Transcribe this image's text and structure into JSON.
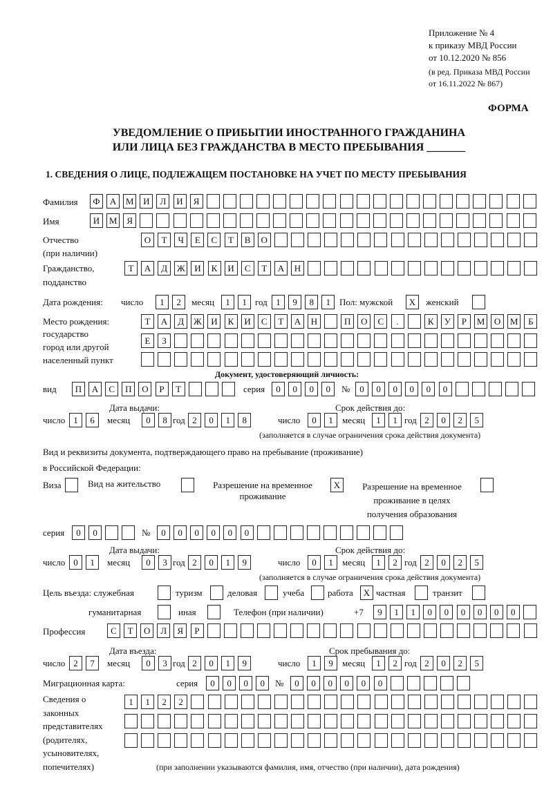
{
  "header": {
    "appendix": "Приложение № 4",
    "order_ref": "к приказу МВД России",
    "order_date": "от 10.12.2020 № 856",
    "amend_1": "(в ред. Приказа МВД России",
    "amend_2": "от 16.11.2022 № 867)",
    "form_label": "ФОРМА",
    "title_1": "УВЕДОМЛЕНИЕ О ПРИБЫТИИ ИНОСТРАННОГО ГРАЖДАНИНА",
    "title_2": "ИЛИ ЛИЦА БЕЗ ГРАЖДАНСТВА В МЕСТО ПРЕБЫВАНИЯ _______",
    "section_1": "1. СВЕДЕНИЯ О ЛИЦЕ, ПОДЛЕЖАЩЕМ ПОСТАНОВКЕ НА УЧЕТ ПО МЕСТУ ПРЕБЫВАНИЯ"
  },
  "labels": {
    "surname": "Фамилия",
    "name": "Имя",
    "patronymic_1": "Отчество",
    "patronymic_2": "(при наличии)",
    "citizenship_1": "Гражданство,",
    "citizenship_2": "подданство",
    "birth_date": "Дата рождения:",
    "day": "число",
    "month": "месяц",
    "year": "год",
    "sex": "Пол: мужской",
    "female": "женский",
    "birthplace_1": "Место рождения:",
    "birthplace_2": "государство",
    "birthplace_3": "город или другой",
    "birthplace_4": "населенный пункт",
    "id_doc": "Документ, удостоверяющий личность:",
    "kind": "вид",
    "series": "серия",
    "number": "№",
    "issue_date": "Дата выдачи:",
    "valid_until": "Срок действия до:",
    "valid_note": "(заполняется в случае ограничения срока действия документа)",
    "stay_doc_1": "Вид и реквизиты документа, подтверждающего право на пребывание (проживание)",
    "stay_doc_2": "в Российской Федерации:",
    "visa": "Виза",
    "residence": "Вид на жительство",
    "trp_1": "Разрешение на временное",
    "trp_2": "проживание",
    "trp_edu_1": "Разрешение на временное",
    "trp_edu_2": "проживание в целях",
    "trp_edu_3": "получения образования",
    "purpose": "Цель въезда: служебная",
    "tourism": "туризм",
    "business": "деловая",
    "study": "учеба",
    "work": "работа",
    "private": "частная",
    "transit": "транзит",
    "humanitarian": "гуманитарная",
    "other": "иная",
    "phone": "Телефон (при наличии)",
    "phone_prefix": "+7",
    "profession": "Профессия",
    "entry_date": "Дата въезда:",
    "stay_until": "Срок пребывания до:",
    "migration_card": "Миграционная карта:",
    "reps_1": "Сведения о",
    "reps_2": "законных",
    "reps_3": "представителях",
    "reps_4": "(родителях,",
    "reps_5": "усыновителях,",
    "reps_6": "попечителях)",
    "reps_note": "(при заполнении указываются фамилия, имя, отчество (при наличии), дата рождения)"
  },
  "values": {
    "surname": "ФАМИЛИЯ",
    "name": "ИМЯ",
    "patronymic": "ОТЧЕСТВО",
    "citizenship": "ТАДЖИКИСТАН",
    "birth_day": "12",
    "birth_month": "11",
    "birth_year": "1981",
    "sex_male": "X",
    "sex_female": "",
    "birthplace_1": "ТАДЖИКИСТАН ПОС. КУРМОМБ",
    "birthplace_2": "ЕЗ",
    "birthplace_3": "",
    "doc_kind": "ПАСПОРТ",
    "doc_series": "0000",
    "doc_number": "000000",
    "doc_issue_day": "16",
    "doc_issue_month": "08",
    "doc_issue_year": "2018",
    "doc_valid_day": "01",
    "doc_valid_month": "11",
    "doc_valid_year": "2025",
    "visa": "",
    "residence": "",
    "trp": "X",
    "trp_edu": "",
    "stay_series": "00",
    "stay_number": "000000",
    "stay_issue_day": "01",
    "stay_issue_month": "03",
    "stay_issue_year": "2019",
    "stay_valid_day": "01",
    "stay_valid_month": "12",
    "stay_valid_year": "2025",
    "purpose_official": "",
    "purpose_tourism": "",
    "purpose_business": "",
    "purpose_study": "",
    "purpose_work": "X",
    "purpose_private": "",
    "purpose_transit": "",
    "purpose_humanitarian": "",
    "purpose_other": "",
    "phone": "911000000",
    "profession": "СТОЛЯР",
    "entry_day": "27",
    "entry_month": "03",
    "entry_year": "2019",
    "stay_until_day": "19",
    "stay_until_month": "12",
    "stay_until_year": "2025",
    "mc_series": "0000",
    "mc_number": "000000",
    "reps_1": "1122",
    "reps_2": "",
    "reps_3": ""
  }
}
